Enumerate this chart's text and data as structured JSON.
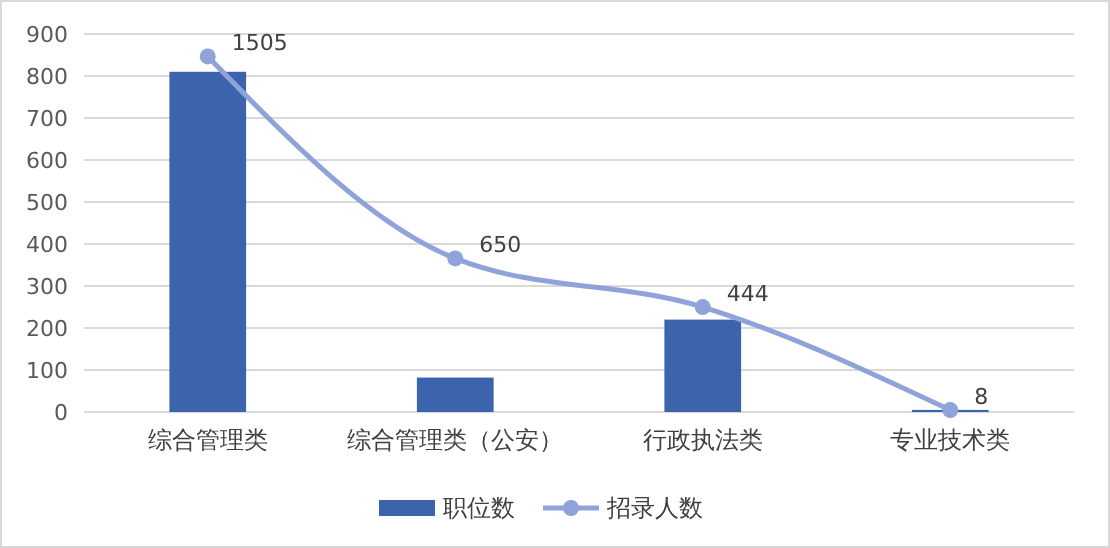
{
  "chart_data": {
    "type": "bar",
    "categories": [
      "综合管理类",
      "综合管理类（公安）",
      "行政执法类",
      "专业技术类"
    ],
    "series": [
      {
        "name": "职位数",
        "color": "#3b64ad",
        "values": [
          810,
          82,
          220,
          5
        ]
      },
      {
        "name": "招录人数",
        "type": "line",
        "axis": "y2",
        "color": "#8fa3da",
        "values": [
          1505,
          650,
          444,
          8
        ],
        "value_labels": [
          "1505",
          "650",
          "444",
          "8"
        ]
      }
    ],
    "ylim": [
      0,
      900
    ],
    "yticks": [
      0,
      100,
      200,
      300,
      400,
      500,
      600,
      700,
      800,
      900
    ],
    "y2lim": [
      0,
      1600
    ],
    "grid": "y",
    "legend": "bottom",
    "marker": "circle"
  }
}
